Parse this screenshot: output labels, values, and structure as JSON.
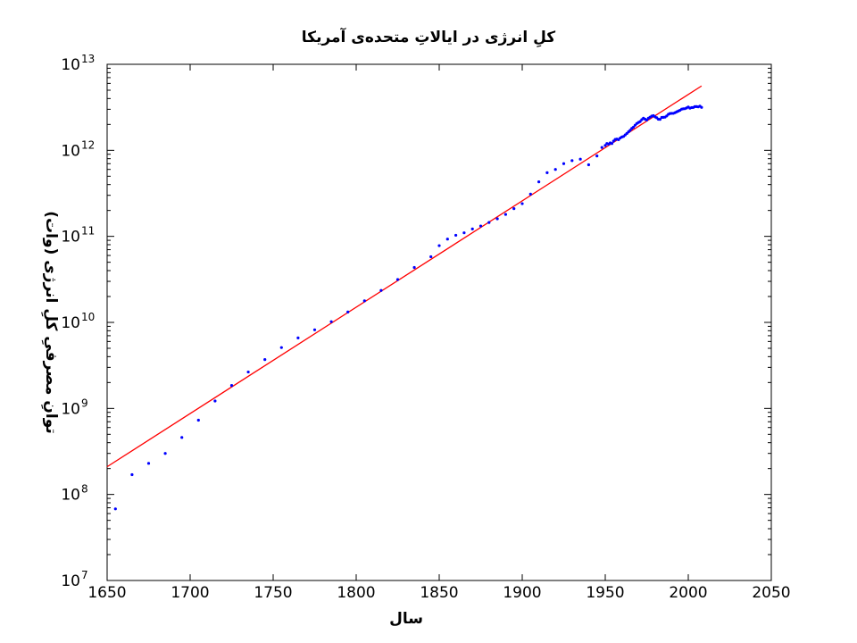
{
  "chart_data": {
    "type": "scatter",
    "title": "کلِ انرژی در ایالاتِ متحده‌ی آمریکا",
    "xlabel": "سال",
    "ylabel": "توانِ مصرفیِ کلِ انرژی (وات)",
    "xlim": [
      1650,
      2050
    ],
    "ylim_log10": [
      7,
      13
    ],
    "yscale": "log",
    "grid": false,
    "x_ticks": [
      "1650",
      "1700",
      "1750",
      "1800",
      "1850",
      "1900",
      "1950",
      "2000",
      "2050"
    ],
    "y_ticks": [
      {
        "base": "10",
        "exp": "7"
      },
      {
        "base": "10",
        "exp": "8"
      },
      {
        "base": "10",
        "exp": "9"
      },
      {
        "base": "10",
        "exp": "10"
      },
      {
        "base": "10",
        "exp": "11"
      },
      {
        "base": "10",
        "exp": "12"
      },
      {
        "base": "10",
        "exp": "13"
      }
    ],
    "series": [
      {
        "kind": "points",
        "color": "#0000ff",
        "points": [
          [
            1655,
            68000000.0
          ],
          [
            1665,
            170000000.0
          ],
          [
            1675,
            230000000.0
          ],
          [
            1685,
            300000000.0
          ],
          [
            1695,
            460000000.0
          ],
          [
            1705,
            730000000.0
          ],
          [
            1715,
            1220000000.0
          ],
          [
            1725,
            1850000000.0
          ],
          [
            1735,
            2650000000.0
          ],
          [
            1745,
            3700000000.0
          ],
          [
            1755,
            5100000000.0
          ],
          [
            1765,
            6600000000.0
          ],
          [
            1775,
            8200000000.0
          ],
          [
            1785,
            10200000000.0
          ],
          [
            1795,
            13200000000.0
          ],
          [
            1805,
            17800000000.0
          ],
          [
            1815,
            23500000000.0
          ],
          [
            1825,
            31500000000.0
          ],
          [
            1835,
            43500000000.0
          ],
          [
            1845,
            58000000000.0
          ],
          [
            1850,
            78000000000.0
          ],
          [
            1855,
            93000000000.0
          ],
          [
            1860,
            103000000000.0
          ],
          [
            1865,
            110000000000.0
          ],
          [
            1870,
            122000000000.0
          ],
          [
            1875,
            132000000000.0
          ],
          [
            1880,
            145000000000.0
          ],
          [
            1885,
            160000000000.0
          ],
          [
            1890,
            180000000000.0
          ],
          [
            1895,
            210000000000.0
          ],
          [
            1900,
            240000000000.0
          ],
          [
            1905,
            310000000000.0
          ],
          [
            1910,
            430000000000.0
          ],
          [
            1915,
            550000000000.0
          ],
          [
            1920,
            600000000000.0
          ],
          [
            1925,
            700000000000.0
          ],
          [
            1930,
            760000000000.0
          ],
          [
            1935,
            790000000000.0
          ],
          [
            1940,
            680000000000.0
          ],
          [
            1945,
            860000000000.0
          ],
          [
            1948,
            1080000000000.0
          ],
          [
            1950,
            1140000000000.0
          ],
          [
            1951,
            1200000000000.0
          ],
          [
            1952,
            1180000000000.0
          ],
          [
            1953,
            1220000000000.0
          ],
          [
            1954,
            1200000000000.0
          ],
          [
            1955,
            1280000000000.0
          ],
          [
            1956,
            1340000000000.0
          ],
          [
            1957,
            1350000000000.0
          ],
          [
            1958,
            1330000000000.0
          ],
          [
            1959,
            1390000000000.0
          ],
          [
            1960,
            1430000000000.0
          ],
          [
            1961,
            1450000000000.0
          ],
          [
            1962,
            1510000000000.0
          ],
          [
            1963,
            1570000000000.0
          ],
          [
            1964,
            1640000000000.0
          ],
          [
            1965,
            1710000000000.0
          ],
          [
            1966,
            1800000000000.0
          ],
          [
            1967,
            1860000000000.0
          ],
          [
            1968,
            1960000000000.0
          ],
          [
            1969,
            2050000000000.0
          ],
          [
            1970,
            2110000000000.0
          ],
          [
            1971,
            2160000000000.0
          ],
          [
            1972,
            2270000000000.0
          ],
          [
            1973,
            2360000000000.0
          ],
          [
            1974,
            2300000000000.0
          ],
          [
            1975,
            2250000000000.0
          ],
          [
            1976,
            2360000000000.0
          ],
          [
            1977,
            2430000000000.0
          ],
          [
            1978,
            2500000000000.0
          ],
          [
            1979,
            2530000000000.0
          ],
          [
            1980,
            2450000000000.0
          ],
          [
            1981,
            2390000000000.0
          ],
          [
            1982,
            2300000000000.0
          ],
          [
            1983,
            2290000000000.0
          ],
          [
            1984,
            2410000000000.0
          ],
          [
            1985,
            2420000000000.0
          ],
          [
            1986,
            2430000000000.0
          ],
          [
            1987,
            2510000000000.0
          ],
          [
            1988,
            2620000000000.0
          ],
          [
            1989,
            2680000000000.0
          ],
          [
            1990,
            2690000000000.0
          ],
          [
            1991,
            2690000000000.0
          ],
          [
            1992,
            2740000000000.0
          ],
          [
            1993,
            2800000000000.0
          ],
          [
            1994,
            2860000000000.0
          ],
          [
            1995,
            2920000000000.0
          ],
          [
            1996,
            3010000000000.0
          ],
          [
            1997,
            3040000000000.0
          ],
          [
            1998,
            3050000000000.0
          ],
          [
            1999,
            3110000000000.0
          ],
          [
            2000,
            3190000000000.0
          ],
          [
            2001,
            3090000000000.0
          ],
          [
            2002,
            3140000000000.0
          ],
          [
            2003,
            3150000000000.0
          ],
          [
            2004,
            3220000000000.0
          ],
          [
            2005,
            3220000000000.0
          ],
          [
            2006,
            3200000000000.0
          ],
          [
            2007,
            3260000000000.0
          ],
          [
            2008,
            3160000000000.0
          ]
        ]
      },
      {
        "kind": "fit-line",
        "color": "#ff0000",
        "points": [
          [
            1650,
            210000000.0
          ],
          [
            2008,
            5600000000000.0
          ]
        ]
      }
    ]
  }
}
